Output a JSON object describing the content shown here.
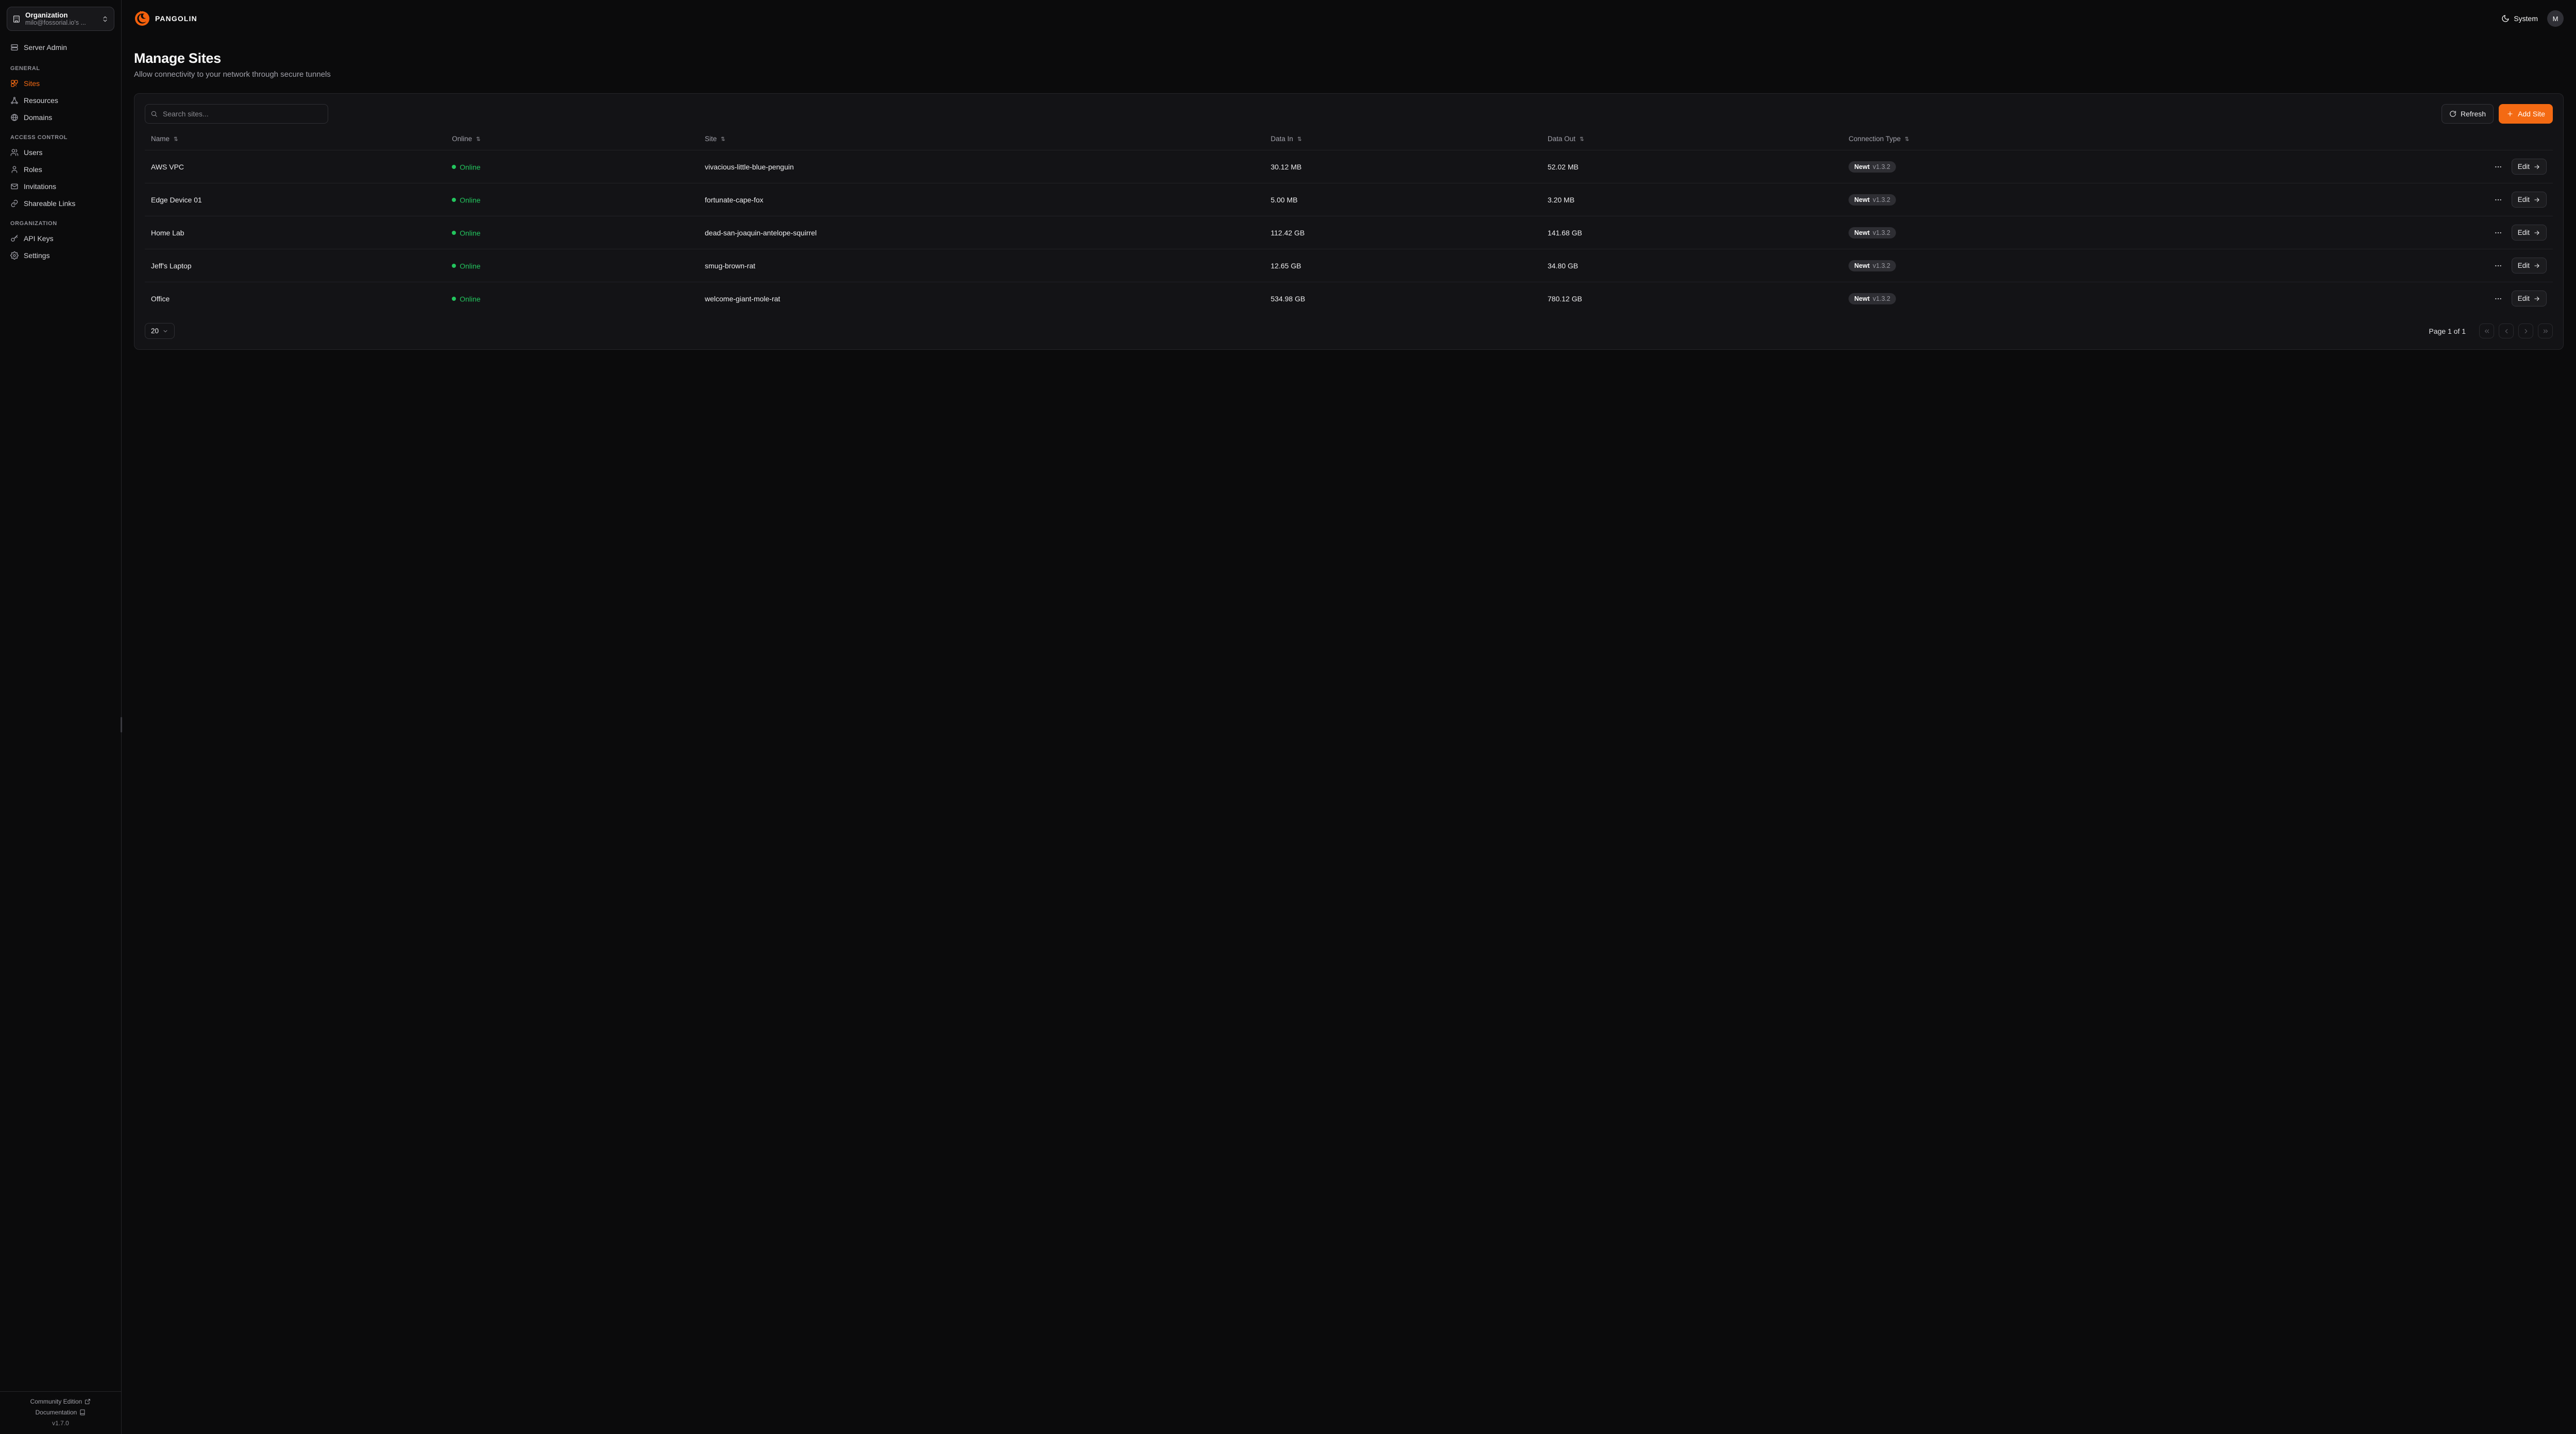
{
  "colors": {
    "accent": "#f46a13",
    "online": "#23c55e"
  },
  "sidebar": {
    "org": {
      "title": "Organization",
      "subtitle": "milo@fossorial.io's ..."
    },
    "server_admin": "Server Admin",
    "sections": [
      {
        "label": "GENERAL",
        "items": [
          {
            "id": "sites",
            "icon": "sites",
            "label": "Sites",
            "active": true
          },
          {
            "id": "resources",
            "icon": "resources",
            "label": "Resources",
            "active": false
          },
          {
            "id": "domains",
            "icon": "globe",
            "label": "Domains",
            "active": false
          }
        ]
      },
      {
        "label": "ACCESS CONTROL",
        "items": [
          {
            "id": "users",
            "icon": "users",
            "label": "Users",
            "active": false
          },
          {
            "id": "roles",
            "icon": "user",
            "label": "Roles",
            "active": false
          },
          {
            "id": "invitations",
            "icon": "mail",
            "label": "Invitations",
            "active": false
          },
          {
            "id": "shareable-links",
            "icon": "link",
            "label": "Shareable Links",
            "active": false
          }
        ]
      },
      {
        "label": "ORGANIZATION",
        "items": [
          {
            "id": "api-keys",
            "icon": "key",
            "label": "API Keys",
            "active": false
          },
          {
            "id": "settings",
            "icon": "gear",
            "label": "Settings",
            "active": false
          }
        ]
      }
    ],
    "footer": {
      "community_edition": "Community Edition",
      "documentation": "Documentation",
      "version": "v1.7.0"
    }
  },
  "header": {
    "brand": "PANGOLIN",
    "theme_label": "System",
    "avatar_initial": "M"
  },
  "page": {
    "title": "Manage Sites",
    "subtitle": "Allow connectivity to your network through secure tunnels"
  },
  "toolbar": {
    "search_placeholder": "Search sites...",
    "refresh_label": "Refresh",
    "add_site_label": "Add Site"
  },
  "table": {
    "columns": [
      "Name",
      "Online",
      "Site",
      "Data In",
      "Data Out",
      "Connection Type"
    ],
    "edit_label": "Edit",
    "rows": [
      {
        "name": "AWS VPC",
        "online": "Online",
        "site": "vivacious-little-blue-penguin",
        "data_in": "30.12 MB",
        "data_out": "52.02 MB",
        "conn_name": "Newt",
        "conn_version": "v1.3.2"
      },
      {
        "name": "Edge Device 01",
        "online": "Online",
        "site": "fortunate-cape-fox",
        "data_in": "5.00 MB",
        "data_out": "3.20 MB",
        "conn_name": "Newt",
        "conn_version": "v1.3.2"
      },
      {
        "name": "Home Lab",
        "online": "Online",
        "site": "dead-san-joaquin-antelope-squirrel",
        "data_in": "112.42 GB",
        "data_out": "141.68 GB",
        "conn_name": "Newt",
        "conn_version": "v1.3.2"
      },
      {
        "name": "Jeff's Laptop",
        "online": "Online",
        "site": "smug-brown-rat",
        "data_in": "12.65 GB",
        "data_out": "34.80 GB",
        "conn_name": "Newt",
        "conn_version": "v1.3.2"
      },
      {
        "name": "Office",
        "online": "Online",
        "site": "welcome-giant-mole-rat",
        "data_in": "534.98 GB",
        "data_out": "780.12 GB",
        "conn_name": "Newt",
        "conn_version": "v1.3.2"
      }
    ]
  },
  "pagination": {
    "page_size": "20",
    "page_label": "Page 1 of 1"
  },
  "icons": {
    "pangolin-logo": "orange pangolin mark",
    "building-icon": "building outline",
    "chevrons-up-down-icon": "selector chevrons",
    "server-icon": "stacked server",
    "sites-icon": "combined squares",
    "resources-icon": "connected nodes",
    "globe-icon": "globe",
    "users-icon": "two users",
    "user-icon": "single user",
    "mail-icon": "envelope",
    "link-icon": "chain link",
    "key-icon": "key",
    "gear-icon": "settings gear",
    "search-icon": "magnifier",
    "refresh-icon": "circular arrow",
    "plus-icon": "+",
    "moon-icon": "crescent moon",
    "sort-icon": "up-down arrows",
    "ellipsis-icon": "horizontal dots",
    "arrow-right-icon": "right arrow",
    "external-link-icon": "box with arrow",
    "book-icon": "open book",
    "chevron-down-icon": "down chevron",
    "online-dot-icon": "green status dot",
    "pager-first-icon": "double chevron left",
    "pager-prev-icon": "chevron left",
    "pager-next-icon": "chevron right",
    "pager-last-icon": "double chevron right"
  }
}
